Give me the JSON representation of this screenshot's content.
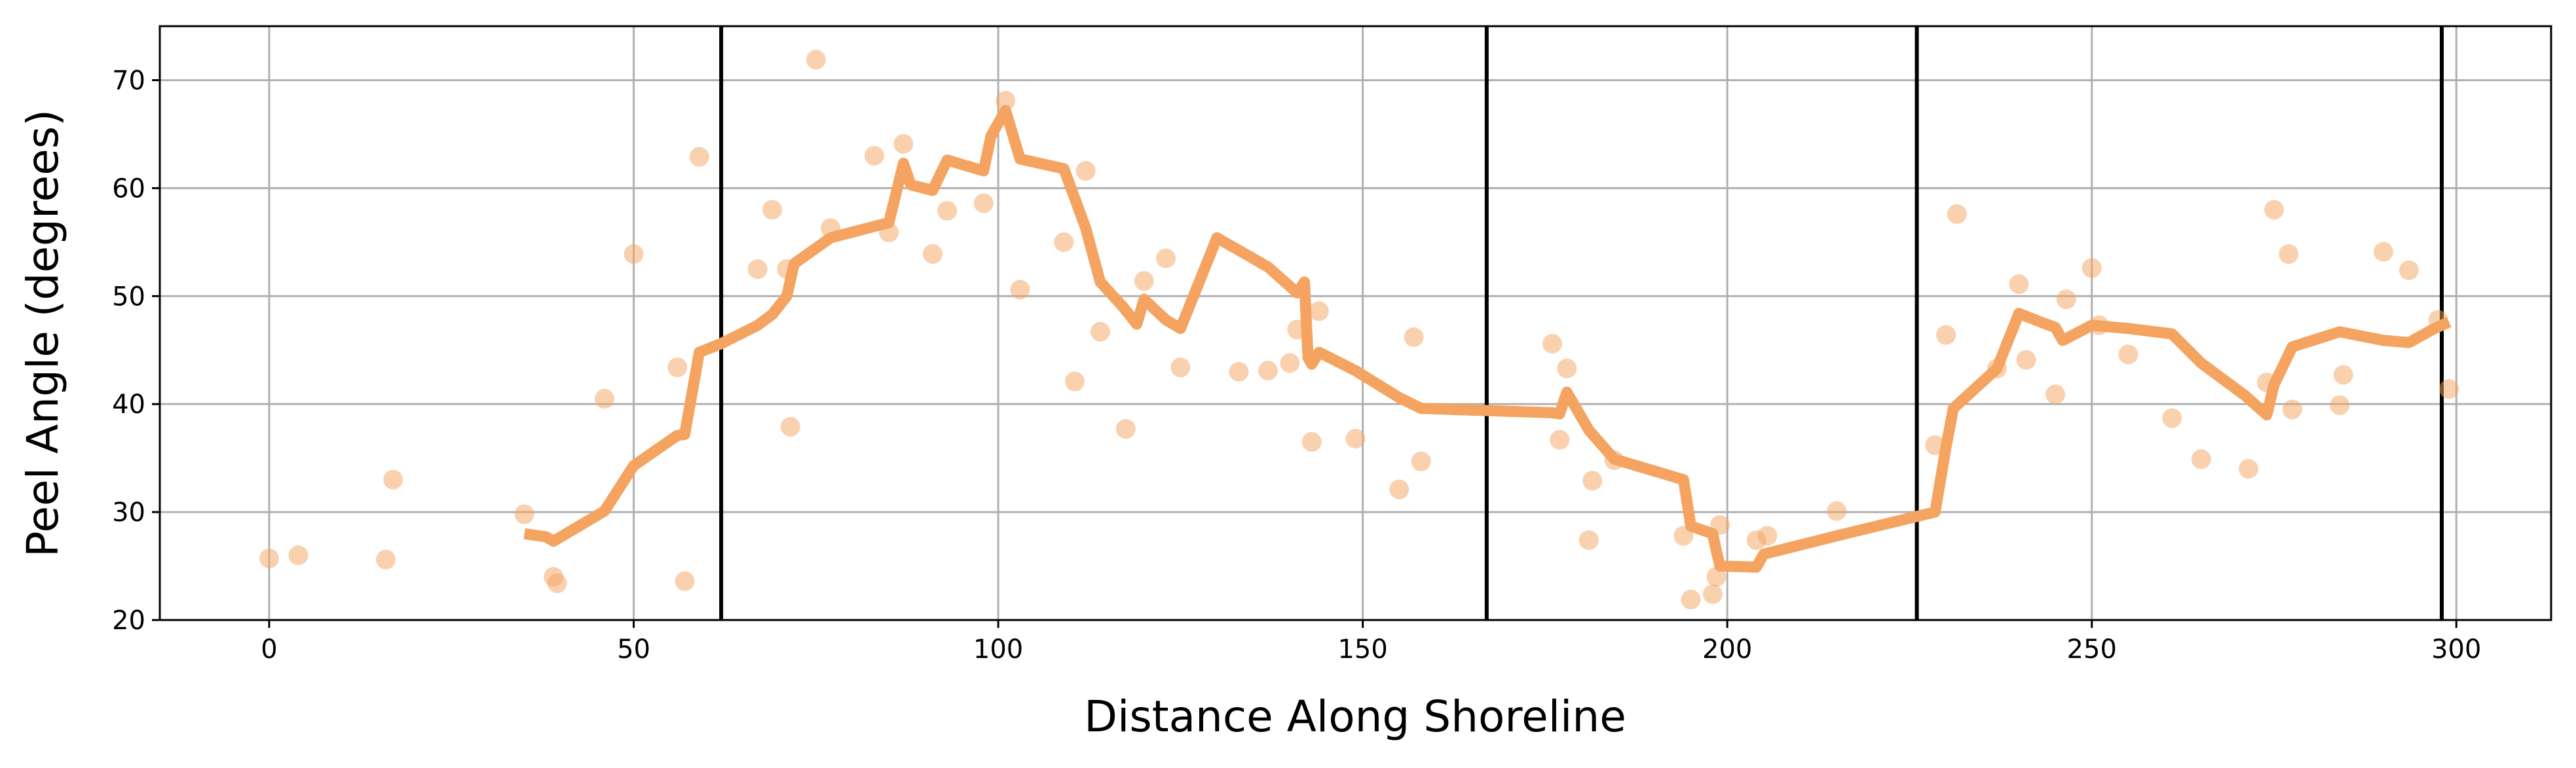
{
  "chart_data": {
    "type": "scatter",
    "title": "",
    "xlabel": "Distance Along Shoreline",
    "ylabel": "Peel Angle (degrees)",
    "xlim": [
      -15,
      313
    ],
    "ylim": [
      20,
      75
    ],
    "grid": true,
    "x_ticks": [
      0,
      50,
      100,
      150,
      200,
      250,
      300
    ],
    "y_ticks": [
      20,
      30,
      40,
      50,
      60,
      70
    ],
    "colors": {
      "series": "#f4a460",
      "vlines": "#000000",
      "grid": "#b0b0b0"
    },
    "vertical_lines": [
      62,
      167,
      226,
      298
    ],
    "series": [
      {
        "type": "scatter",
        "points": [
          [
            0,
            25.7
          ],
          [
            4,
            26.0
          ],
          [
            16,
            25.6
          ],
          [
            17,
            33.0
          ],
          [
            35,
            29.8
          ],
          [
            39,
            24.0
          ],
          [
            39.5,
            23.4
          ],
          [
            46,
            40.5
          ],
          [
            50,
            53.9
          ],
          [
            56,
            43.4
          ],
          [
            57,
            23.6
          ],
          [
            59,
            62.9
          ],
          [
            67,
            52.5
          ],
          [
            69,
            58.0
          ],
          [
            71,
            52.5
          ],
          [
            71.5,
            37.9
          ],
          [
            75,
            71.9
          ],
          [
            77,
            56.3
          ],
          [
            83,
            63.0
          ],
          [
            85,
            55.9
          ],
          [
            87,
            64.1
          ],
          [
            91,
            53.9
          ],
          [
            93,
            57.9
          ],
          [
            98,
            58.6
          ],
          [
            101,
            68.1
          ],
          [
            103,
            50.6
          ],
          [
            109,
            55.0
          ],
          [
            110.5,
            42.1
          ],
          [
            112,
            61.6
          ],
          [
            114,
            46.7
          ],
          [
            117.5,
            37.7
          ],
          [
            120,
            51.4
          ],
          [
            123,
            53.5
          ],
          [
            125,
            43.4
          ],
          [
            133,
            43.0
          ],
          [
            137,
            43.1
          ],
          [
            140,
            43.8
          ],
          [
            141,
            46.9
          ],
          [
            143,
            36.5
          ],
          [
            144,
            48.6
          ],
          [
            149,
            36.8
          ],
          [
            155,
            32.1
          ],
          [
            157,
            46.2
          ],
          [
            158,
            34.7
          ],
          [
            176,
            45.6
          ],
          [
            177,
            36.7
          ],
          [
            178,
            43.3
          ],
          [
            181,
            27.4
          ],
          [
            181.5,
            32.9
          ],
          [
            184.5,
            34.8
          ],
          [
            194,
            27.8
          ],
          [
            195,
            21.9
          ],
          [
            198,
            22.4
          ],
          [
            198.5,
            24.0
          ],
          [
            199,
            28.8
          ],
          [
            204,
            27.4
          ],
          [
            205.5,
            27.8
          ],
          [
            215,
            30.1
          ],
          [
            228.5,
            36.2
          ],
          [
            230,
            46.4
          ],
          [
            231.5,
            57.6
          ],
          [
            237,
            43.3
          ],
          [
            240,
            51.1
          ],
          [
            241,
            44.1
          ],
          [
            245,
            40.9
          ],
          [
            246.5,
            49.7
          ],
          [
            250,
            52.6
          ],
          [
            251,
            47.3
          ],
          [
            255,
            44.6
          ],
          [
            261,
            38.7
          ],
          [
            265,
            34.9
          ],
          [
            271.5,
            34.0
          ],
          [
            274,
            42.0
          ],
          [
            275,
            58.0
          ],
          [
            277,
            53.9
          ],
          [
            277.5,
            39.5
          ],
          [
            284,
            39.9
          ],
          [
            284.5,
            42.7
          ],
          [
            290,
            54.1
          ],
          [
            293.5,
            52.4
          ],
          [
            297.5,
            47.8
          ],
          [
            299,
            41.4
          ]
        ]
      },
      {
        "type": "line",
        "points": [
          [
            35,
            28.0
          ],
          [
            38,
            27.7
          ],
          [
            39,
            27.3
          ],
          [
            46,
            30.1
          ],
          [
            50,
            34.3
          ],
          [
            56,
            37.1
          ],
          [
            57,
            37.2
          ],
          [
            59,
            44.8
          ],
          [
            62,
            45.6
          ],
          [
            67,
            47.3
          ],
          [
            69,
            48.3
          ],
          [
            71,
            50.0
          ],
          [
            72,
            53.0
          ],
          [
            77,
            55.4
          ],
          [
            85,
            56.8
          ],
          [
            87,
            62.3
          ],
          [
            88,
            60.3
          ],
          [
            91,
            59.8
          ],
          [
            93,
            62.6
          ],
          [
            98,
            61.6
          ],
          [
            99,
            64.8
          ],
          [
            101,
            67.2
          ],
          [
            103,
            62.7
          ],
          [
            109,
            61.8
          ],
          [
            112,
            56.3
          ],
          [
            114,
            51.3
          ],
          [
            117,
            49.1
          ],
          [
            119,
            47.4
          ],
          [
            120,
            49.7
          ],
          [
            123,
            47.8
          ],
          [
            125,
            47.0
          ],
          [
            130,
            55.4
          ],
          [
            137,
            52.7
          ],
          [
            141,
            50.3
          ],
          [
            142,
            51.3
          ],
          [
            142.5,
            44.3
          ],
          [
            143,
            43.7
          ],
          [
            144,
            44.8
          ],
          [
            149,
            43.1
          ],
          [
            155,
            40.6
          ],
          [
            158,
            39.6
          ],
          [
            176,
            39.2
          ],
          [
            177,
            39.1
          ],
          [
            178,
            41.1
          ],
          [
            181,
            37.6
          ],
          [
            184.5,
            34.9
          ],
          [
            194,
            33.0
          ],
          [
            195,
            28.7
          ],
          [
            198,
            28.0
          ],
          [
            198.5,
            26.4
          ],
          [
            199,
            25.0
          ],
          [
            204,
            24.9
          ],
          [
            205,
            26.1
          ],
          [
            215,
            27.8
          ],
          [
            226,
            29.6
          ],
          [
            228.5,
            30.0
          ],
          [
            230,
            36.0
          ],
          [
            231,
            39.6
          ],
          [
            237,
            43.3
          ],
          [
            239,
            46.7
          ],
          [
            240,
            48.4
          ],
          [
            243,
            47.6
          ],
          [
            245,
            47.1
          ],
          [
            246,
            45.9
          ],
          [
            250,
            47.3
          ],
          [
            255,
            47.0
          ],
          [
            261,
            46.5
          ],
          [
            265,
            43.8
          ],
          [
            271,
            40.8
          ],
          [
            274,
            39.0
          ],
          [
            275,
            41.8
          ],
          [
            277.5,
            45.3
          ],
          [
            284,
            46.7
          ],
          [
            290,
            45.9
          ],
          [
            293.5,
            45.7
          ],
          [
            297,
            47.0
          ],
          [
            299,
            47.6
          ]
        ]
      }
    ]
  }
}
